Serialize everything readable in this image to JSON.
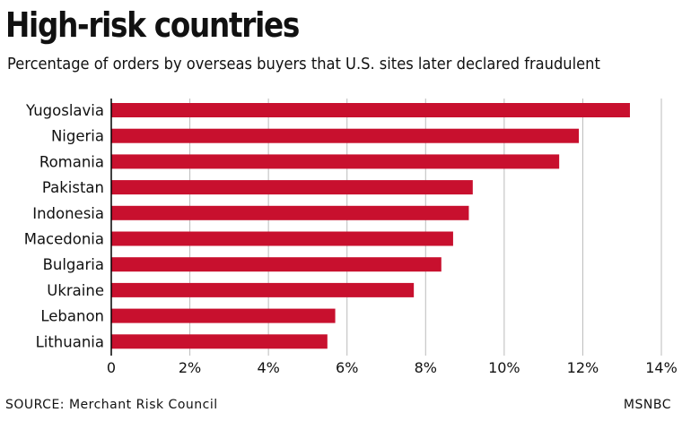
{
  "header": {
    "title": "High-risk countries",
    "subtitle": "Percentage of orders by overseas buyers that U.S. sites later declared fraudulent"
  },
  "footer": {
    "source": "SOURCE: Merchant Risk Council",
    "credit": "MSNBC"
  },
  "colors": {
    "bar": "#c8102e",
    "grid": "#bbbbbb",
    "axis": "#000000"
  },
  "chart_data": {
    "type": "bar",
    "orientation": "horizontal",
    "title": "High-risk countries",
    "subtitle": "Percentage of orders by overseas buyers that U.S. sites later declared fraudulent",
    "categories": [
      "Yugoslavia",
      "Nigeria",
      "Romania",
      "Pakistan",
      "Indonesia",
      "Macedonia",
      "Bulgaria",
      "Ukraine",
      "Lebanon",
      "Lithuania"
    ],
    "values": [
      13.2,
      11.9,
      11.4,
      9.2,
      9.1,
      8.7,
      8.4,
      7.7,
      5.7,
      5.5
    ],
    "xlim": [
      0,
      14
    ],
    "xticks": [
      0,
      2,
      4,
      6,
      8,
      10,
      12,
      14
    ],
    "xtick_labels": [
      "0",
      "2%",
      "4%",
      "6%",
      "8%",
      "10%",
      "12%",
      "14%"
    ],
    "grid": true
  }
}
